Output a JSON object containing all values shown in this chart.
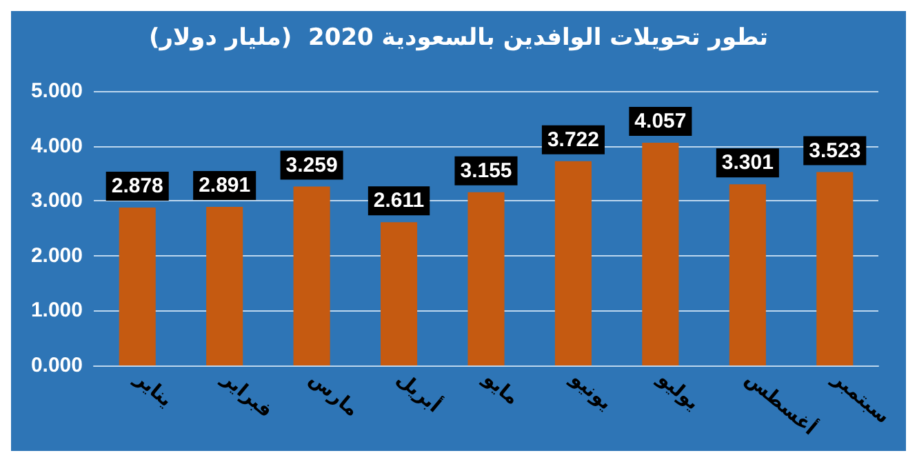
{
  "chart_data": {
    "type": "bar",
    "title": "تطور تحويلات الوافدين بالسعودية 2020  (مليار دولار)",
    "categories": [
      "يناير",
      "فبراير",
      "مارس",
      "أبريل",
      "مايو",
      "يونيو",
      "يوليو",
      "أغسطس",
      "سبتمبر"
    ],
    "values": [
      2.878,
      2.891,
      3.259,
      2.611,
      3.155,
      3.722,
      4.057,
      3.301,
      3.523
    ],
    "color": "#c55a11",
    "ylim": [
      0,
      5
    ],
    "yticks": [
      {
        "value": 0,
        "label": "0.000"
      },
      {
        "value": 1,
        "label": "1.000"
      },
      {
        "value": 2,
        "label": "2.000"
      },
      {
        "value": 3,
        "label": "3.000"
      },
      {
        "value": 4,
        "label": "4.000"
      },
      {
        "value": 5,
        "label": "5.000"
      }
    ],
    "grid": true,
    "data_labels": true
  }
}
